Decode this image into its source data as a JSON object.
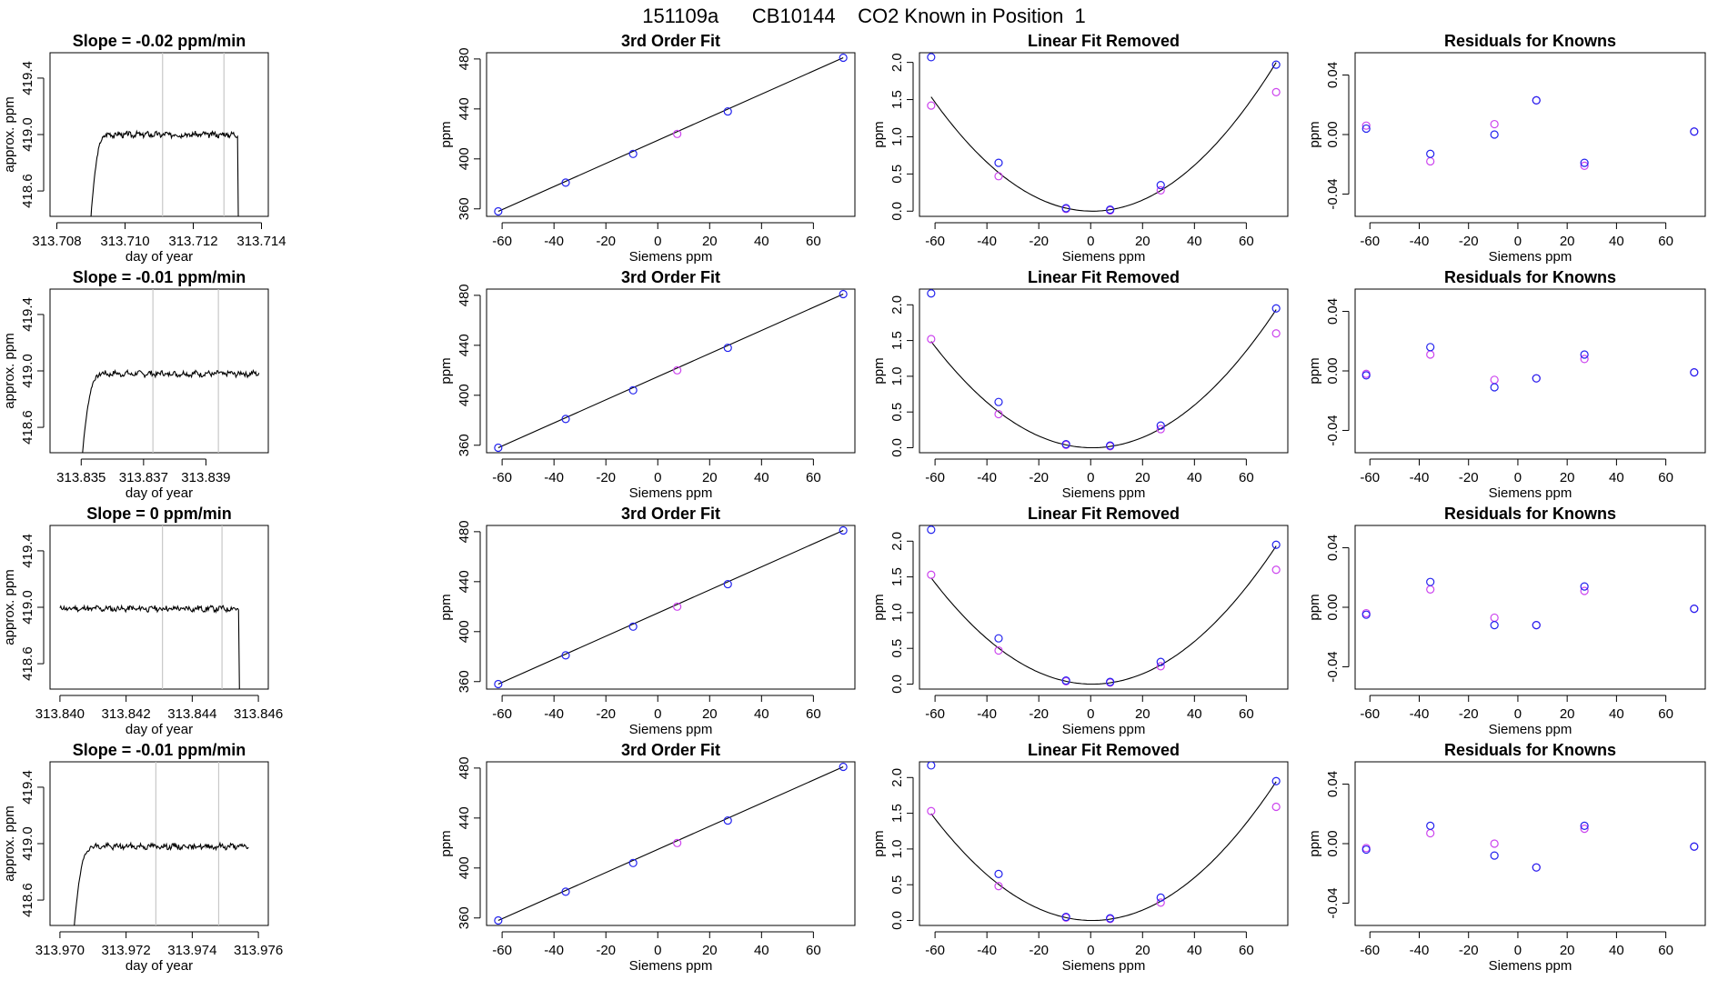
{
  "figure": {
    "suptitle": "151109a      CB10144    CO2 Known in Position  1"
  },
  "colors": {
    "trace": "#000000",
    "vline": "#c8c8c8",
    "marker_a": "#2222ee",
    "marker_b": "#cc44ee",
    "fit": "#000000"
  },
  "chart_data": [
    {
      "panel": "slope",
      "row": 0,
      "type": "line",
      "title": "Slope =  -0.02  ppm/min",
      "xlabel": "day of year",
      "ylabel": "approx. ppm",
      "xlim": [
        313.7078,
        313.7142
      ],
      "ylim": [
        418.42,
        419.58
      ],
      "xticks": [
        313.708,
        313.71,
        313.712,
        313.714
      ],
      "xtick_labels": [
        "313.708",
        "313.710",
        "313.712",
        "313.714"
      ],
      "yticks": [
        418.6,
        419.0,
        419.4
      ],
      "ytick_labels": [
        "418.6",
        "419.0",
        "419.4"
      ],
      "start": 313.7089,
      "end": 313.7133,
      "level": 419.0,
      "vlines": [
        313.7111,
        313.7129
      ],
      "seed": 3
    },
    {
      "panel": "fit",
      "row": 0,
      "type": "scatter",
      "title": "3rd Order Fit",
      "xlabel": "Siemens ppm",
      "ylabel": "ppm",
      "xlim": [
        -66,
        76
      ],
      "ylim": [
        354,
        485
      ],
      "xticks": [
        -60,
        -40,
        -20,
        0,
        20,
        40,
        60
      ],
      "xtick_labels": [
        "-60",
        "-40",
        "-20",
        "0",
        "20",
        "40",
        "60"
      ],
      "yticks": [
        360,
        400,
        440,
        480
      ],
      "ytick_labels": [
        "360",
        "400",
        "440",
        "480"
      ],
      "x": [
        -61.5,
        -35.5,
        -9.5,
        7.5,
        27,
        71.5
      ],
      "y": [
        358,
        381,
        404,
        420,
        438,
        481
      ],
      "pink": [
        3
      ]
    },
    {
      "panel": "linear",
      "row": 0,
      "type": "scatter",
      "title": "Linear Fit Removed",
      "xlabel": "Siemens ppm",
      "ylabel": "ppm",
      "xlim": [
        -66,
        76
      ],
      "ylim": [
        -0.07,
        2.13
      ],
      "xticks": [
        -60,
        -40,
        -20,
        0,
        20,
        40,
        60
      ],
      "xtick_labels": [
        "-60",
        "-40",
        "-20",
        "0",
        "20",
        "40",
        "60"
      ],
      "yticks": [
        0,
        0.5,
        1,
        1.5,
        2
      ],
      "ytick_labels": [
        "0.0",
        "0.5",
        "1.0",
        "1.5",
        "2.0"
      ],
      "x": [
        -61.5,
        -35.5,
        -9.5,
        7.5,
        27,
        71.5
      ],
      "y_blue": [
        2.07,
        0.65,
        0.04,
        0.02,
        0.35,
        1.97
      ],
      "y_pink": [
        1.42,
        0.47,
        0.03,
        0.01,
        0.28,
        1.6
      ],
      "curve": [
        2.08,
        0.0,
        0.000398
      ]
    },
    {
      "panel": "resid",
      "row": 0,
      "type": "scatter",
      "title": "Residuals for Knowns",
      "xlabel": "Siemens ppm",
      "ylabel": "ppm",
      "xlim": [
        -66,
        76
      ],
      "ylim": [
        -0.055,
        0.055
      ],
      "xticks": [
        -60,
        -40,
        -20,
        0,
        20,
        40,
        60
      ],
      "xtick_labels": [
        "-60",
        "-40",
        "-20",
        "0",
        "20",
        "40",
        "60"
      ],
      "yticks": [
        -0.04,
        0,
        0.04
      ],
      "ytick_labels": [
        "-0.04",
        "0.00",
        "0.04"
      ],
      "x": [
        -61.5,
        -35.5,
        -9.5,
        7.5,
        27,
        71.5
      ],
      "y_blue": [
        0.004,
        -0.013,
        0.0,
        0.023,
        -0.019,
        0.002
      ],
      "y_pink": [
        0.006,
        -0.018,
        0.007,
        0.023,
        -0.021,
        0.002
      ]
    },
    {
      "panel": "slope",
      "row": 1,
      "type": "line",
      "title": "Slope =  -0.01  ppm/min",
      "xlabel": "day of year",
      "ylabel": "approx. ppm",
      "xlim": [
        313.834,
        313.841
      ],
      "ylim": [
        418.42,
        419.58
      ],
      "xticks": [
        313.835,
        313.837,
        313.839
      ],
      "xtick_labels": [
        "313.835",
        "313.837",
        "313.839"
      ],
      "yticks": [
        418.6,
        419.0,
        419.4
      ],
      "ytick_labels": [
        "418.6",
        "419.0",
        "419.4"
      ],
      "start": 313.8349,
      "end": 313.8407,
      "level": 418.98,
      "vlines": [
        313.8373,
        313.8394
      ],
      "seed": 7
    },
    {
      "panel": "fit",
      "row": 1,
      "type": "scatter",
      "title": "3rd Order Fit",
      "xlabel": "Siemens ppm",
      "ylabel": "ppm",
      "xlim": [
        -66,
        76
      ],
      "ylim": [
        354,
        485
      ],
      "xticks": [
        -60,
        -40,
        -20,
        0,
        20,
        40,
        60
      ],
      "xtick_labels": [
        "-60",
        "-40",
        "-20",
        "0",
        "20",
        "40",
        "60"
      ],
      "yticks": [
        360,
        400,
        440,
        480
      ],
      "ytick_labels": [
        "360",
        "400",
        "440",
        "480"
      ],
      "x": [
        -61.5,
        -35.5,
        -9.5,
        7.5,
        27,
        71.5
      ],
      "y": [
        358,
        381,
        404,
        420,
        438,
        481
      ],
      "pink": [
        3
      ]
    },
    {
      "panel": "linear",
      "row": 1,
      "type": "scatter",
      "title": "Linear Fit Removed",
      "xlabel": "Siemens ppm",
      "ylabel": "ppm",
      "xlim": [
        -66,
        76
      ],
      "ylim": [
        -0.07,
        2.22
      ],
      "xticks": [
        -60,
        -40,
        -20,
        0,
        20,
        40,
        60
      ],
      "xtick_labels": [
        "-60",
        "-40",
        "-20",
        "0",
        "20",
        "40",
        "60"
      ],
      "yticks": [
        0,
        0.5,
        1,
        1.5,
        2
      ],
      "ytick_labels": [
        "0.0",
        "0.5",
        "1.0",
        "1.5",
        "2.0"
      ],
      "x": [
        -61.5,
        -35.5,
        -9.5,
        7.5,
        27,
        71.5
      ],
      "y_blue": [
        2.16,
        0.64,
        0.05,
        0.03,
        0.31,
        1.95
      ],
      "y_pink": [
        1.52,
        0.47,
        0.04,
        0.02,
        0.26,
        1.6
      ],
      "curve": [
        2.12,
        0.0,
        0.000385
      ]
    },
    {
      "panel": "resid",
      "row": 1,
      "type": "scatter",
      "title": "Residuals for Knowns",
      "xlabel": "Siemens ppm",
      "ylabel": "ppm",
      "xlim": [
        -66,
        76
      ],
      "ylim": [
        -0.055,
        0.055
      ],
      "xticks": [
        -60,
        -40,
        -20,
        0,
        20,
        40,
        60
      ],
      "xtick_labels": [
        "-60",
        "-40",
        "-20",
        "0",
        "20",
        "40",
        "60"
      ],
      "yticks": [
        -0.04,
        0,
        0.04
      ],
      "ytick_labels": [
        "-0.04",
        "0.00",
        "0.04"
      ],
      "x": [
        -61.5,
        -35.5,
        -9.5,
        7.5,
        27,
        71.5
      ],
      "y_blue": [
        -0.003,
        0.016,
        -0.011,
        -0.005,
        0.011,
        -0.001
      ],
      "y_pink": [
        -0.002,
        0.011,
        -0.006,
        -0.005,
        0.008,
        -0.001
      ]
    },
    {
      "panel": "slope",
      "row": 2,
      "type": "line",
      "title": "Slope =  0  ppm/min",
      "xlabel": "day of year",
      "ylabel": "approx. ppm",
      "xlim": [
        313.8397,
        313.8463
      ],
      "ylim": [
        418.42,
        419.58
      ],
      "xticks": [
        313.84,
        313.842,
        313.844,
        313.846
      ],
      "xtick_labels": [
        "313.840",
        "313.842",
        "313.844",
        "313.846"
      ],
      "yticks": [
        418.6,
        419.0,
        419.4
      ],
      "ytick_labels": [
        "418.6",
        "419.0",
        "419.4"
      ],
      "start": 313.84,
      "end": 313.8454,
      "level": 418.99,
      "vlines": [
        313.8431,
        313.8449
      ],
      "seed": 11,
      "flat_start": true
    },
    {
      "panel": "fit",
      "row": 2,
      "type": "scatter",
      "title": "3rd Order Fit",
      "xlabel": "Siemens ppm",
      "ylabel": "ppm",
      "xlim": [
        -66,
        76
      ],
      "ylim": [
        354,
        485
      ],
      "xticks": [
        -60,
        -40,
        -20,
        0,
        20,
        40,
        60
      ],
      "xtick_labels": [
        "-60",
        "-40",
        "-20",
        "0",
        "20",
        "40",
        "60"
      ],
      "yticks": [
        360,
        400,
        440,
        480
      ],
      "ytick_labels": [
        "360",
        "400",
        "440",
        "480"
      ],
      "x": [
        -61.5,
        -35.5,
        -9.5,
        7.5,
        27,
        71.5
      ],
      "y": [
        358,
        381,
        404,
        420,
        438,
        481
      ],
      "pink": [
        3
      ]
    },
    {
      "panel": "linear",
      "row": 2,
      "type": "scatter",
      "title": "Linear Fit Removed",
      "xlabel": "Siemens ppm",
      "ylabel": "ppm",
      "xlim": [
        -66,
        76
      ],
      "ylim": [
        -0.07,
        2.22
      ],
      "xticks": [
        -60,
        -40,
        -20,
        0,
        20,
        40,
        60
      ],
      "xtick_labels": [
        "-60",
        "-40",
        "-20",
        "0",
        "20",
        "40",
        "60"
      ],
      "yticks": [
        0,
        0.5,
        1,
        1.5,
        2
      ],
      "ytick_labels": [
        "0.0",
        "0.5",
        "1.0",
        "1.5",
        "2.0"
      ],
      "x": [
        -61.5,
        -35.5,
        -9.5,
        7.5,
        27,
        71.5
      ],
      "y_blue": [
        2.16,
        0.64,
        0.05,
        0.03,
        0.31,
        1.95
      ],
      "y_pink": [
        1.53,
        0.47,
        0.04,
        0.02,
        0.25,
        1.6
      ],
      "curve": [
        2.12,
        0.0,
        0.000385
      ]
    },
    {
      "panel": "resid",
      "row": 2,
      "type": "scatter",
      "title": "Residuals for Knowns",
      "xlabel": "Siemens ppm",
      "ylabel": "ppm",
      "xlim": [
        -66,
        76
      ],
      "ylim": [
        -0.055,
        0.055
      ],
      "xticks": [
        -60,
        -40,
        -20,
        0,
        20,
        40,
        60
      ],
      "xtick_labels": [
        "-60",
        "-40",
        "-20",
        "0",
        "20",
        "40",
        "60"
      ],
      "yticks": [
        -0.04,
        0,
        0.04
      ],
      "ytick_labels": [
        "-0.04",
        "0.00",
        "0.04"
      ],
      "x": [
        -61.5,
        -35.5,
        -9.5,
        7.5,
        27,
        71.5
      ],
      "y_blue": [
        -0.005,
        0.017,
        -0.012,
        -0.012,
        0.014,
        -0.001
      ],
      "y_pink": [
        -0.004,
        0.012,
        -0.007,
        -0.012,
        0.011,
        -0.001
      ]
    },
    {
      "panel": "slope",
      "row": 3,
      "type": "line",
      "title": "Slope =  -0.01  ppm/min",
      "xlabel": "day of year",
      "ylabel": "approx. ppm",
      "xlim": [
        313.9697,
        313.9763
      ],
      "ylim": [
        418.42,
        419.58
      ],
      "xticks": [
        313.97,
        313.972,
        313.974,
        313.976
      ],
      "xtick_labels": [
        "313.970",
        "313.972",
        "313.974",
        "313.976"
      ],
      "yticks": [
        418.6,
        419.0,
        419.4
      ],
      "ytick_labels": [
        "418.6",
        "419.0",
        "419.4"
      ],
      "start": 313.9703,
      "end": 313.9757,
      "level": 418.98,
      "vlines": [
        313.9729,
        313.9748
      ],
      "seed": 19
    },
    {
      "panel": "fit",
      "row": 3,
      "type": "scatter",
      "title": "3rd Order Fit",
      "xlabel": "Siemens ppm",
      "ylabel": "ppm",
      "xlim": [
        -66,
        76
      ],
      "ylim": [
        354,
        485
      ],
      "xticks": [
        -60,
        -40,
        -20,
        0,
        20,
        40,
        60
      ],
      "xtick_labels": [
        "-60",
        "-40",
        "-20",
        "0",
        "20",
        "40",
        "60"
      ],
      "yticks": [
        360,
        400,
        440,
        480
      ],
      "ytick_labels": [
        "360",
        "400",
        "440",
        "480"
      ],
      "x": [
        -61.5,
        -35.5,
        -9.5,
        7.5,
        27,
        71.5
      ],
      "y": [
        358,
        381,
        404,
        420,
        438,
        481
      ],
      "pink": [
        3
      ]
    },
    {
      "panel": "linear",
      "row": 3,
      "type": "scatter",
      "title": "Linear Fit Removed",
      "xlabel": "Siemens ppm",
      "ylabel": "ppm",
      "xlim": [
        -66,
        76
      ],
      "ylim": [
        -0.07,
        2.22
      ],
      "xticks": [
        -60,
        -40,
        -20,
        0,
        20,
        40,
        60
      ],
      "xtick_labels": [
        "-60",
        "-40",
        "-20",
        "0",
        "20",
        "40",
        "60"
      ],
      "yticks": [
        0,
        0.5,
        1,
        1.5,
        2
      ],
      "ytick_labels": [
        "0.0",
        "0.5",
        "1.0",
        "1.5",
        "2.0"
      ],
      "x": [
        -61.5,
        -35.5,
        -9.5,
        7.5,
        27,
        71.5
      ],
      "y_blue": [
        2.17,
        0.65,
        0.05,
        0.03,
        0.32,
        1.95
      ],
      "y_pink": [
        1.53,
        0.48,
        0.04,
        0.02,
        0.25,
        1.59
      ],
      "curve": [
        2.13,
        0.0,
        0.000387
      ]
    },
    {
      "panel": "resid",
      "row": 3,
      "type": "scatter",
      "title": "Residuals for Knowns",
      "xlabel": "Siemens ppm",
      "ylabel": "ppm",
      "xlim": [
        -66,
        76
      ],
      "ylim": [
        -0.055,
        0.055
      ],
      "xticks": [
        -60,
        -40,
        -20,
        0,
        20,
        40,
        60
      ],
      "xtick_labels": [
        "-60",
        "-40",
        "-20",
        "0",
        "20",
        "40",
        "60"
      ],
      "yticks": [
        -0.04,
        0,
        0.04
      ],
      "ytick_labels": [
        "-0.04",
        "0.00",
        "0.04"
      ],
      "x": [
        -61.5,
        -35.5,
        -9.5,
        7.5,
        27,
        71.5
      ],
      "y_blue": [
        -0.004,
        0.012,
        -0.008,
        -0.016,
        0.012,
        -0.002
      ],
      "y_pink": [
        -0.003,
        0.007,
        0.0,
        -0.016,
        0.01,
        -0.002
      ]
    }
  ]
}
